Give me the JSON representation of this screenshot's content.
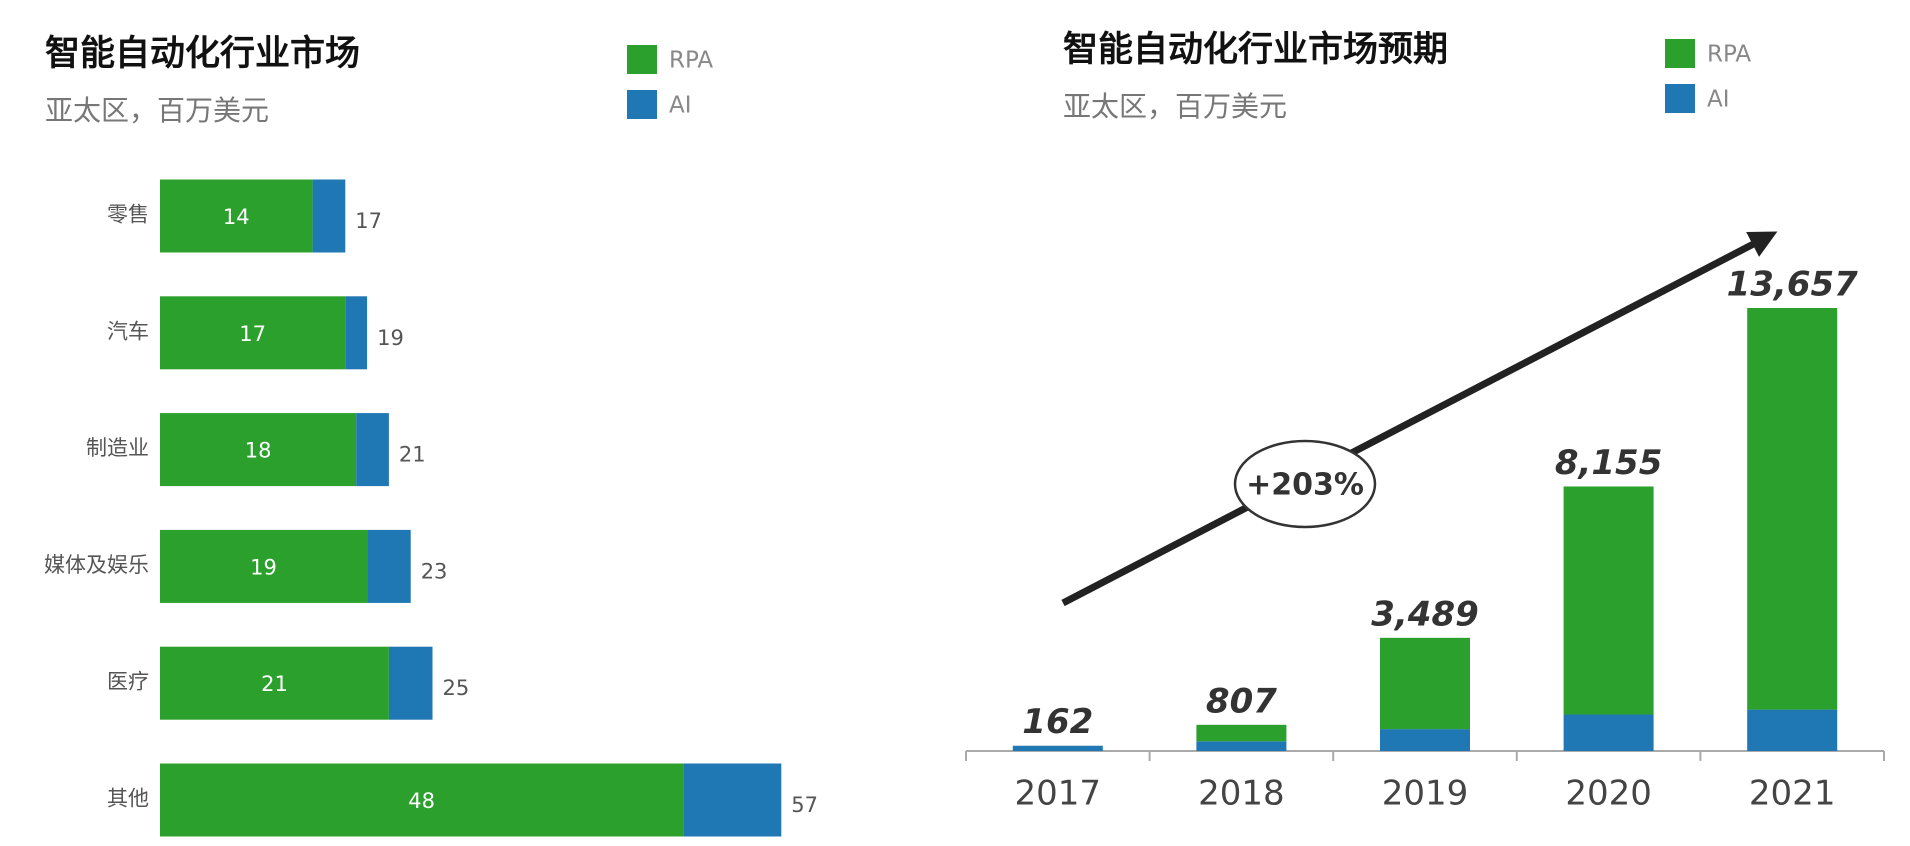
{
  "chart_data": [
    {
      "type": "barh",
      "title": "智能自动化行业市场",
      "subtitle": "亚太区，百万美元",
      "categories": [
        "零售",
        "汽车",
        "制造业",
        "媒体及娱乐",
        "医疗",
        "其他"
      ],
      "series": [
        {
          "name": "RPA",
          "color": "#2ca02c",
          "values": [
            14,
            17,
            18,
            19,
            21,
            48
          ]
        },
        {
          "name": "AI",
          "color": "#1f77b4",
          "values": [
            3,
            2,
            3,
            4,
            4,
            9
          ]
        }
      ],
      "totals": [
        17,
        19,
        21,
        23,
        25,
        57
      ]
    },
    {
      "type": "bar",
      "title": "智能自动化行业市场预期",
      "subtitle": "亚太区，百万美元",
      "categories": [
        "2017",
        "2018",
        "2019",
        "2020",
        "2021"
      ],
      "series": [
        {
          "name": "RPA",
          "color": "#2ca02c",
          "values": [
            0,
            507,
            2814,
            7029,
            12381
          ]
        },
        {
          "name": "AI",
          "color": "#1f77b4",
          "values": [
            162,
            300,
            675,
            1126,
            1276
          ]
        }
      ],
      "totals": [
        162,
        807,
        3489,
        8155,
        13657
      ],
      "total_labels": [
        "162",
        "807",
        "3,489",
        "8,155",
        "13,657"
      ],
      "annotation": "+203%"
    }
  ]
}
